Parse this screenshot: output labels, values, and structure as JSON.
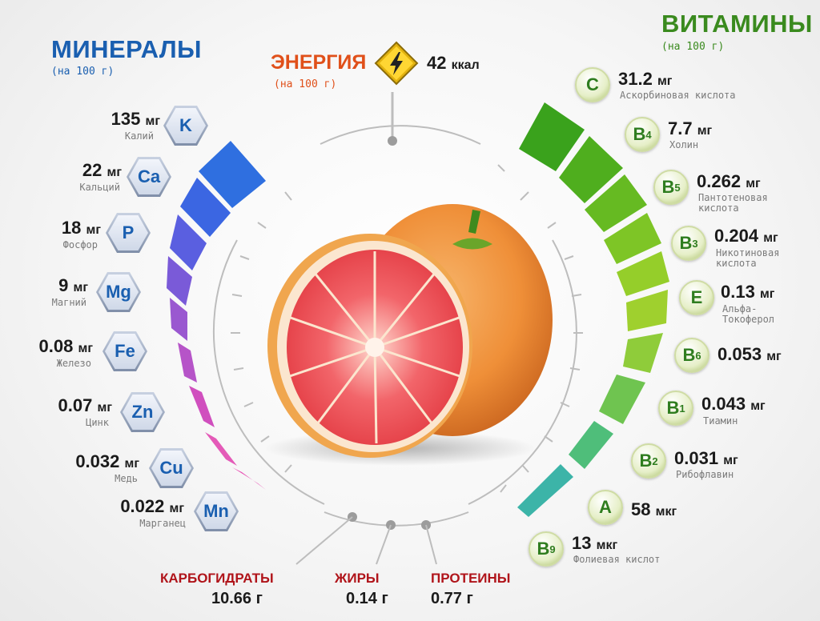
{
  "minerals": {
    "title": "МИНЕРАЛЫ",
    "subtitle": "(на 100 г)",
    "items": [
      {
        "symbol": "K",
        "value": "135",
        "unit": "мг",
        "name": "Калий"
      },
      {
        "symbol": "Ca",
        "value": "22",
        "unit": "мг",
        "name": "Кальций"
      },
      {
        "symbol": "P",
        "value": "18",
        "unit": "мг",
        "name": "Фосфор"
      },
      {
        "symbol": "Mg",
        "value": "9",
        "unit": "мг",
        "name": "Магний"
      },
      {
        "symbol": "Fe",
        "value": "0.08",
        "unit": "мг",
        "name": "Железо"
      },
      {
        "symbol": "Zn",
        "value": "0.07",
        "unit": "мг",
        "name": "Цинк"
      },
      {
        "symbol": "Cu",
        "value": "0.032",
        "unit": "мг",
        "name": "Медь"
      },
      {
        "symbol": "Mn",
        "value": "0.022",
        "unit": "мг",
        "name": "Марганец"
      }
    ]
  },
  "energy": {
    "title": "ЭНЕРГИЯ",
    "subtitle": "(на 100 г)",
    "value": "42",
    "unit": "ккал",
    "icon": "lightning-icon"
  },
  "vitamins": {
    "title": "ВИТАМИНЫ",
    "subtitle": "(на 100 г)",
    "items": [
      {
        "letter": "C",
        "index": "",
        "value": "31.2",
        "unit": "мг",
        "name": "Аскорбиновая кислота"
      },
      {
        "letter": "B",
        "index": "4",
        "value": "7.7",
        "unit": "мг",
        "name": "Холин"
      },
      {
        "letter": "B",
        "index": "5",
        "value": "0.262",
        "unit": "мг",
        "name": "Пантотеновая кислота"
      },
      {
        "letter": "B",
        "index": "3",
        "value": "0.204",
        "unit": "мг",
        "name": "Никотиновая кислота"
      },
      {
        "letter": "E",
        "index": "",
        "value": "0.13",
        "unit": "мг",
        "name": "Альфа-Токоферол"
      },
      {
        "letter": "B",
        "index": "6",
        "value": "0.053",
        "unit": "мг",
        "name": ""
      },
      {
        "letter": "B",
        "index": "1",
        "value": "0.043",
        "unit": "мг",
        "name": "Тиамин"
      },
      {
        "letter": "B",
        "index": "2",
        "value": "0.031",
        "unit": "мг",
        "name": "Рибофлавин"
      },
      {
        "letter": "A",
        "index": "",
        "value": "58",
        "unit": "мкг",
        "name": ""
      },
      {
        "letter": "B",
        "index": "9",
        "value": "13",
        "unit": "мкг",
        "name": "Фолиевая кислот"
      }
    ]
  },
  "macros": [
    {
      "name": "КАРБОГИДРАТЫ",
      "value": "10.66 г"
    },
    {
      "name": "ЖИРЫ",
      "value": "0.14 г"
    },
    {
      "name": "ПРОТЕИНЫ",
      "value": "0.77 г"
    }
  ],
  "colors": {
    "minerals_title": "#1a5fb0",
    "energy_title": "#e0501a",
    "vitamins_title": "#3a8a1e",
    "macro_title": "#b0141a",
    "mineral_bars": [
      "#2f6fe0",
      "#3b66e2",
      "#5a5fe0",
      "#7a5ad8",
      "#9a58d0",
      "#b654c8",
      "#d04fbe",
      "#e45ab8"
    ],
    "vitamin_bars": [
      "#3aa21c",
      "#4fae1e",
      "#66ba22",
      "#7ec526",
      "#95ce2a",
      "#9fd02e",
      "#8fcc3a",
      "#6fc450",
      "#4fbe7a",
      "#3cb4a8"
    ]
  }
}
